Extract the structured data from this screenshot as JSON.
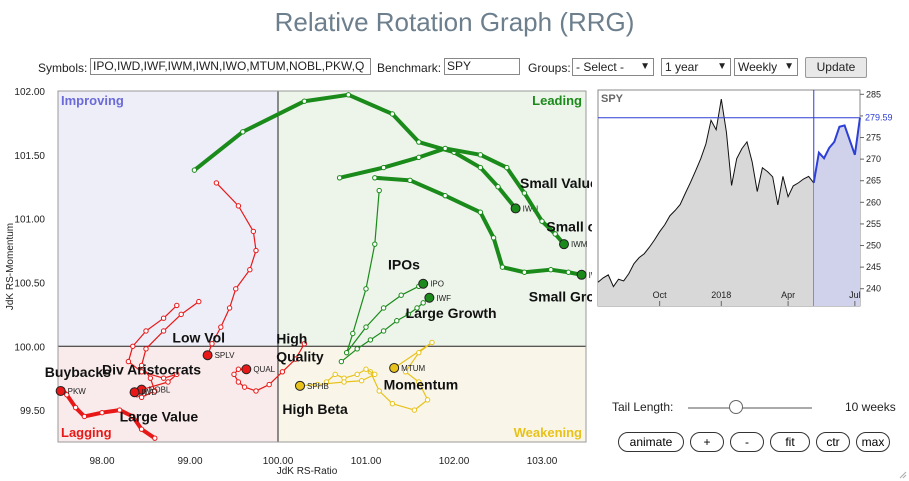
{
  "app": {
    "title": "Relative Rotation Graph (RRG)"
  },
  "controls": {
    "symbols_label": "Symbols:",
    "symbols_value": "IPO,IWD,IWF,IWM,IWN,IWO,MTUM,NOBL,PKW,Q",
    "benchmark_label": "Benchmark:",
    "benchmark_value": "SPY",
    "groups_label": "Groups:",
    "groups_value": "- Select -",
    "period_value": "1 year",
    "interval_value": "Weekly",
    "update_label": "Update"
  },
  "tail": {
    "label": "Tail Length:",
    "value_text": "10 weeks",
    "weeks": 10,
    "max_weeks": 26
  },
  "buttons": {
    "animate": "animate",
    "plus": "+",
    "minus": "-",
    "fit": "fit",
    "ctr": "ctr",
    "max": "max"
  },
  "colors": {
    "leading": "#1a8a1a",
    "lagging": "#e81818",
    "weakening": "#e8c21a",
    "improving": "#6a6ad8",
    "benchmark_line": "#2d3fd6"
  },
  "chart_data": [
    {
      "type": "scatter",
      "title": "",
      "xlabel": "JdK RS-Ratio",
      "ylabel": "JdK RS-Momentum",
      "xlim": [
        97.5,
        103.5
      ],
      "ylim": [
        99.25,
        102.0
      ],
      "x_ticks": [
        "98.00",
        "99.00",
        "100.00",
        "101.00",
        "102.00",
        "103.00"
      ],
      "y_ticks": [
        "99.50",
        "100.00",
        "100.50",
        "101.00",
        "101.50",
        "102.00"
      ],
      "quadrants": {
        "improving": "Improving",
        "leading": "Leading",
        "weakening": "Weakening",
        "lagging": "Lagging"
      },
      "grid": false,
      "series": [
        {
          "name": "IWN",
          "color": "#1a8a1a",
          "thick": true,
          "points": [
            [
              99.05,
              101.38
            ],
            [
              99.6,
              101.68
            ],
            [
              100.3,
              101.92
            ],
            [
              100.8,
              101.97
            ],
            [
              101.3,
              101.82
            ],
            [
              101.6,
              101.6
            ],
            [
              102.0,
              101.52
            ],
            [
              102.3,
              101.4
            ],
            [
              102.5,
              101.25
            ],
            [
              102.7,
              101.08
            ]
          ]
        },
        {
          "name": "IWM",
          "color": "#1a8a1a",
          "thick": true,
          "points": [
            [
              100.7,
              101.32
            ],
            [
              101.2,
              101.4
            ],
            [
              101.6,
              101.48
            ],
            [
              101.9,
              101.55
            ],
            [
              102.3,
              101.5
            ],
            [
              102.6,
              101.4
            ],
            [
              102.8,
              101.2
            ],
            [
              103.0,
              100.98
            ],
            [
              103.15,
              100.88
            ],
            [
              103.25,
              100.8
            ]
          ]
        },
        {
          "name": "IWO",
          "color": "#1a8a1a",
          "thick": true,
          "points": [
            [
              101.1,
              101.32
            ],
            [
              101.5,
              101.3
            ],
            [
              101.9,
              101.18
            ],
            [
              102.3,
              101.05
            ],
            [
              102.45,
              100.85
            ],
            [
              102.55,
              100.62
            ],
            [
              102.8,
              100.58
            ],
            [
              103.1,
              100.6
            ],
            [
              103.3,
              100.58
            ],
            [
              103.45,
              100.56
            ]
          ]
        },
        {
          "name": "IPO",
          "color": "#1a8a1a",
          "thick": false,
          "points": [
            [
              101.15,
              101.22
            ],
            [
              101.1,
              100.8
            ],
            [
              101.0,
              100.45
            ],
            [
              100.85,
              100.1
            ],
            [
              100.78,
              99.95
            ],
            [
              101.0,
              100.15
            ],
            [
              101.2,
              100.3
            ],
            [
              101.4,
              100.4
            ],
            [
              101.6,
              100.47
            ],
            [
              101.65,
              100.49
            ]
          ]
        },
        {
          "name": "IWF",
          "color": "#1a8a1a",
          "thick": false,
          "points": [
            [
              100.72,
              99.88
            ],
            [
              100.9,
              99.98
            ],
            [
              101.05,
              100.05
            ],
            [
              101.2,
              100.12
            ],
            [
              101.35,
              100.2
            ],
            [
              101.48,
              100.25
            ],
            [
              101.58,
              100.3
            ],
            [
              101.65,
              100.34
            ],
            [
              101.7,
              100.37
            ],
            [
              101.72,
              100.38
            ]
          ]
        },
        {
          "name": "MTUM",
          "color": "#e8c21a",
          "thick": false,
          "points": [
            [
              101.05,
              99.8
            ],
            [
              101.15,
              99.65
            ],
            [
              101.3,
              99.55
            ],
            [
              101.55,
              99.5
            ],
            [
              101.7,
              99.58
            ],
            [
              101.6,
              99.72
            ],
            [
              101.45,
              99.8
            ],
            [
              101.6,
              99.95
            ],
            [
              101.75,
              100.03
            ],
            [
              101.32,
              99.83
            ]
          ]
        },
        {
          "name": "SPHB",
          "color": "#e8c21a",
          "thick": false,
          "points": [
            [
              100.55,
              99.72
            ],
            [
              100.65,
              99.78
            ],
            [
              100.75,
              99.75
            ],
            [
              100.9,
              99.78
            ],
            [
              101.0,
              99.82
            ],
            [
              101.1,
              99.78
            ],
            [
              100.95,
              99.73
            ],
            [
              100.75,
              99.72
            ],
            [
              100.45,
              99.7
            ],
            [
              100.25,
              99.69
            ]
          ]
        },
        {
          "name": "SPLV",
          "color": "#e81818",
          "thick": false,
          "points": [
            [
              99.3,
              101.28
            ],
            [
              99.55,
              101.1
            ],
            [
              99.72,
              100.9
            ],
            [
              99.75,
              100.75
            ],
            [
              99.68,
              100.6
            ],
            [
              99.52,
              100.45
            ],
            [
              99.45,
              100.3
            ],
            [
              99.35,
              100.15
            ],
            [
              99.25,
              100.02
            ],
            [
              99.2,
              99.93
            ]
          ]
        },
        {
          "name": "QUAL",
          "color": "#e81818",
          "thick": false,
          "points": [
            [
              100.3,
              100.02
            ],
            [
              100.2,
              99.9
            ],
            [
              100.05,
              99.8
            ],
            [
              99.9,
              99.7
            ],
            [
              99.75,
              99.65
            ],
            [
              99.62,
              99.68
            ],
            [
              99.55,
              99.72
            ],
            [
              99.5,
              99.78
            ],
            [
              99.55,
              99.82
            ],
            [
              99.64,
              99.82
            ]
          ]
        },
        {
          "name": "NOBL",
          "color": "#e81818",
          "thick": false,
          "points": [
            [
              98.85,
              100.32
            ],
            [
              98.7,
              100.22
            ],
            [
              98.5,
              100.12
            ],
            [
              98.35,
              100.0
            ],
            [
              98.3,
              99.88
            ],
            [
              98.45,
              99.8
            ],
            [
              98.7,
              99.75
            ],
            [
              98.85,
              99.78
            ],
            [
              98.75,
              99.72
            ],
            [
              98.45,
              99.66
            ]
          ]
        },
        {
          "name": "IWD",
          "color": "#e81818",
          "thick": false,
          "points": [
            [
              99.1,
              100.35
            ],
            [
              98.9,
              100.25
            ],
            [
              98.7,
              100.12
            ],
            [
              98.5,
              99.98
            ],
            [
              98.45,
              99.85
            ],
            [
              98.55,
              99.75
            ],
            [
              98.6,
              99.65
            ],
            [
              98.45,
              99.6
            ],
            [
              98.4,
              99.62
            ],
            [
              98.37,
              99.64
            ]
          ]
        },
        {
          "name": "PKW",
          "color": "#e81818",
          "thick": true,
          "points": [
            [
              98.6,
              99.28
            ],
            [
              98.45,
              99.35
            ],
            [
              98.35,
              99.45
            ],
            [
              98.2,
              99.5
            ],
            [
              98.0,
              99.48
            ],
            [
              97.8,
              99.45
            ],
            [
              97.7,
              99.52
            ],
            [
              97.6,
              99.62
            ],
            [
              97.55,
              99.66
            ],
            [
              97.53,
              99.65
            ]
          ]
        }
      ],
      "annotations": [
        {
          "text": "Small Value",
          "x": 102.75,
          "y": 101.24
        },
        {
          "text": "Small cap",
          "x": 103.05,
          "y": 100.9
        },
        {
          "text": "IPOs",
          "x": 101.25,
          "y": 100.6
        },
        {
          "text": "Large Growth",
          "x": 101.45,
          "y": 100.22
        },
        {
          "text": "Small Growth",
          "x": 102.85,
          "y": 100.35
        },
        {
          "text": "Low Vol",
          "x": 98.8,
          "y": 100.03
        },
        {
          "text": "High",
          "x": 99.98,
          "y": 100.02
        },
        {
          "text": "Quality",
          "x": 99.98,
          "y": 99.88
        },
        {
          "text": "Div Aristocrats",
          "x": 98.0,
          "y": 99.78
        },
        {
          "text": "Buybacks",
          "x": 97.35,
          "y": 99.76
        },
        {
          "text": "Momentum",
          "x": 101.2,
          "y": 99.66
        },
        {
          "text": "High Beta",
          "x": 100.05,
          "y": 99.47
        },
        {
          "text": "Large Value",
          "x": 98.2,
          "y": 99.41
        }
      ],
      "point_labels": [
        "IWN",
        "IWM",
        "IWO",
        "IPO",
        "IWF",
        "MTUM",
        "SPHB",
        "SPLV",
        "QUAL",
        "NOBL",
        "IWD",
        "PKW"
      ]
    },
    {
      "type": "area",
      "title": "SPY",
      "xlabel": "",
      "ylabel": "",
      "ylim": [
        236,
        286
      ],
      "y_ticks": [
        "285",
        "280",
        "275",
        "270",
        "265",
        "260",
        "255",
        "250",
        "245",
        "240"
      ],
      "x_ticks": [
        "Oct",
        "2018",
        "Apr",
        "Jul"
      ],
      "x_tick_index": [
        12,
        24,
        37,
        50
      ],
      "current_value": "279.59",
      "highlight_start_index": 42,
      "values": [
        241.5,
        242.5,
        243.2,
        240.5,
        242.2,
        241.8,
        243.5,
        245.8,
        247.2,
        248.1,
        249.6,
        251.3,
        253.2,
        254.8,
        256.9,
        258.1,
        259.5,
        262.1,
        264.6,
        267.3,
        270.1,
        273.5,
        279.0,
        276.8,
        283.9,
        276.2,
        263.9,
        270.1,
        272.4,
        274.0,
        269.4,
        262.5,
        268.0,
        267.1,
        265.9,
        259.4,
        266.0,
        261.3,
        263.8,
        264.5,
        265.4,
        266.0,
        264.5,
        271.5,
        270.2,
        272.6,
        274.0,
        277.5,
        277.8,
        274.4,
        271.0,
        279.6
      ]
    }
  ]
}
